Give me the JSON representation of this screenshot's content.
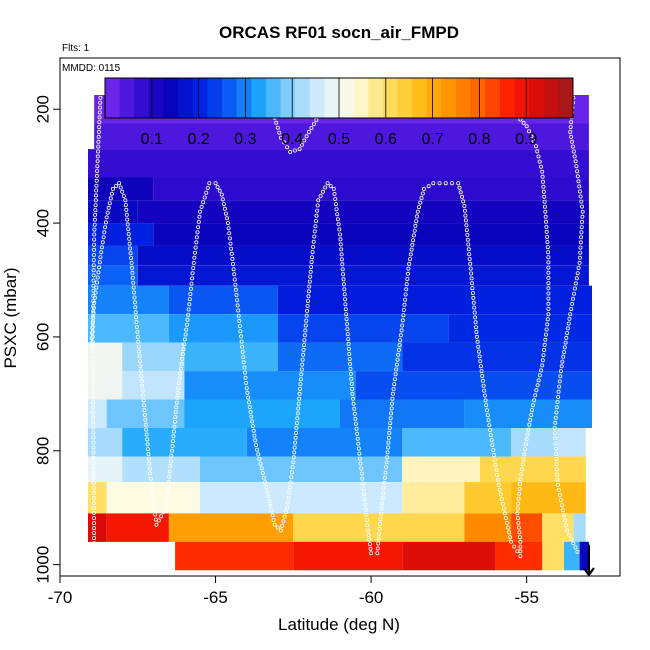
{
  "chart_data": {
    "type": "heatmap",
    "title": "ORCAS RF01 socn_air_FMPD",
    "flights_note": "Flts: 1",
    "date_note": "MMDD: 0115",
    "xlabel": "Latitude (deg N)",
    "ylabel": "PSXC (mbar)",
    "xlim": [
      -70,
      -52
    ],
    "ylim": [
      1020,
      110
    ],
    "x_ticks": [
      -70,
      -65,
      -60,
      -55
    ],
    "x_tick_labels": [
      "-70",
      "-65",
      "-60",
      "-55"
    ],
    "y_ticks": [
      200,
      400,
      600,
      800,
      1000
    ],
    "y_tick_labels": [
      "200",
      "400",
      "600",
      "800",
      "1000"
    ],
    "colorbar": {
      "range": [
        0,
        1
      ],
      "ticks": [
        0.1,
        0.2,
        0.3,
        0.4,
        0.5,
        0.6,
        0.7,
        0.8,
        0.9
      ],
      "tick_labels": [
        "0.1",
        "0.2",
        "0.3",
        "0.4",
        "0.5",
        "0.6",
        "0.7",
        "0.8",
        "0.9"
      ],
      "colors": [
        "#7b2cf0",
        "#3d10d8",
        "#0a00b8",
        "#0020e0",
        "#0a5cf5",
        "#1ea8fb",
        "#8fd2fb",
        "#e0f1fd",
        "#fffbe0",
        "#ffe066",
        "#ffc21a",
        "#ff9600",
        "#ff6400",
        "#ff1a00",
        "#d40a0a",
        "#9b1c1c"
      ]
    },
    "grid": false,
    "layers": [
      {
        "p_top": 175,
        "p_bot": 225,
        "segments": [
          [
            -68.9,
            -53.0,
            0.02
          ]
        ]
      },
      {
        "p_top": 225,
        "p_bot": 270,
        "segments": [
          [
            -68.9,
            -53.0,
            0.05
          ]
        ]
      },
      {
        "p_top": 270,
        "p_bot": 320,
        "segments": [
          [
            -69.1,
            -53.0,
            0.08
          ]
        ]
      },
      {
        "p_top": 320,
        "p_bot": 360,
        "segments": [
          [
            -69.1,
            -67.0,
            0.13
          ],
          [
            -67.0,
            -53.0,
            0.09
          ]
        ]
      },
      {
        "p_top": 360,
        "p_bot": 400,
        "segments": [
          [
            -69.1,
            -67.5,
            0.15
          ],
          [
            -67.5,
            -53.0,
            0.12
          ]
        ]
      },
      {
        "p_top": 400,
        "p_bot": 440,
        "segments": [
          [
            -69.1,
            -67.0,
            0.2
          ],
          [
            -67.0,
            -53.0,
            0.14
          ]
        ]
      },
      {
        "p_top": 440,
        "p_bot": 475,
        "segments": [
          [
            -69.1,
            -67.5,
            0.24
          ],
          [
            -67.5,
            -53.0,
            0.16
          ]
        ]
      },
      {
        "p_top": 475,
        "p_bot": 510,
        "segments": [
          [
            -69.1,
            -67.5,
            0.27
          ],
          [
            -67.5,
            -53.0,
            0.18
          ]
        ]
      },
      {
        "p_top": 510,
        "p_bot": 560,
        "segments": [
          [
            -69.1,
            -66.5,
            0.3
          ],
          [
            -66.5,
            -63.0,
            0.26
          ],
          [
            -63.0,
            -57.0,
            0.19
          ],
          [
            -57.0,
            -52.9,
            0.2
          ]
        ]
      },
      {
        "p_top": 560,
        "p_bot": 610,
        "segments": [
          [
            -69.1,
            -66.5,
            0.36
          ],
          [
            -66.5,
            -63.0,
            0.32
          ],
          [
            -63.0,
            -57.5,
            0.24
          ],
          [
            -57.5,
            -52.9,
            0.21
          ]
        ]
      },
      {
        "p_top": 610,
        "p_bot": 660,
        "segments": [
          [
            -69.1,
            -68.0,
            0.5
          ],
          [
            -68.0,
            -66.0,
            0.41
          ],
          [
            -66.0,
            -63.0,
            0.35
          ],
          [
            -63.0,
            -59.0,
            0.28
          ],
          [
            -59.0,
            -52.9,
            0.22
          ]
        ]
      },
      {
        "p_top": 660,
        "p_bot": 710,
        "segments": [
          [
            -69.1,
            -68.0,
            0.5
          ],
          [
            -68.0,
            -66.0,
            0.44
          ],
          [
            -66.0,
            -60.5,
            0.31
          ],
          [
            -60.5,
            -52.9,
            0.25
          ]
        ]
      },
      {
        "p_top": 710,
        "p_bot": 760,
        "segments": [
          [
            -69.1,
            -68.5,
            0.45
          ],
          [
            -68.5,
            -66.0,
            0.38
          ],
          [
            -66.0,
            -61.0,
            0.33
          ],
          [
            -61.0,
            -57.0,
            0.29
          ],
          [
            -57.0,
            -52.9,
            0.31
          ]
        ]
      },
      {
        "p_top": 760,
        "p_bot": 810,
        "segments": [
          [
            -69.1,
            -68.0,
            0.42
          ],
          [
            -68.0,
            -64.0,
            0.34
          ],
          [
            -64.0,
            -59.0,
            0.3
          ],
          [
            -59.0,
            -55.5,
            0.36
          ],
          [
            -55.5,
            -54.0,
            0.42
          ],
          [
            -54.0,
            -53.1,
            0.44
          ]
        ]
      },
      {
        "p_top": 810,
        "p_bot": 855,
        "segments": [
          [
            -69.1,
            -68.0,
            0.48
          ],
          [
            -68.0,
            -65.5,
            0.43
          ],
          [
            -65.5,
            -59.0,
            0.38
          ],
          [
            -59.0,
            -56.5,
            0.55
          ],
          [
            -56.5,
            -53.1,
            0.62
          ]
        ]
      },
      {
        "p_top": 855,
        "p_bot": 910,
        "segments": [
          [
            -69.1,
            -68.5,
            0.6
          ],
          [
            -68.5,
            -65.5,
            0.53
          ],
          [
            -65.5,
            -59.0,
            0.45
          ],
          [
            -59.0,
            -57.0,
            0.57
          ],
          [
            -57.0,
            -55.5,
            0.65
          ],
          [
            -55.5,
            -53.1,
            0.68
          ]
        ]
      },
      {
        "p_top": 910,
        "p_bot": 960,
        "segments": [
          [
            -69.1,
            -68.5,
            0.93
          ],
          [
            -68.5,
            -66.5,
            0.88
          ],
          [
            -66.5,
            -62.5,
            0.72
          ],
          [
            -62.5,
            -57.0,
            0.62
          ],
          [
            -57.0,
            -55.5,
            0.75
          ],
          [
            -55.5,
            -54.5,
            0.82
          ],
          [
            -54.5,
            -53.5,
            0.6
          ],
          [
            -53.5,
            -53.1,
            0.42
          ]
        ]
      },
      {
        "p_top": 960,
        "p_bot": 1010,
        "segments": [
          [
            -66.3,
            -62.5,
            0.85
          ],
          [
            -62.5,
            -59.0,
            0.88
          ],
          [
            -59.0,
            -56.0,
            0.92
          ],
          [
            -56.0,
            -54.5,
            0.85
          ],
          [
            -54.5,
            -53.8,
            0.6
          ],
          [
            -53.8,
            -53.3,
            0.35
          ],
          [
            -53.3,
            -53.0,
            0.15
          ]
        ]
      }
    ],
    "flight_track": [
      [
        -68.9,
        980
      ],
      [
        -68.95,
        600
      ],
      [
        -68.9,
        420
      ],
      [
        -68.8,
        300
      ],
      [
        -68.7,
        180
      ],
      [
        -68.5,
        180
      ],
      [
        -67.5,
        180
      ],
      [
        -66.5,
        180
      ],
      [
        -65.5,
        180
      ],
      [
        -64.5,
        180
      ],
      [
        -63.6,
        185
      ],
      [
        -63.1,
        215
      ],
      [
        -62.9,
        250
      ],
      [
        -62.6,
        275
      ],
      [
        -62.3,
        270
      ],
      [
        -62.0,
        240
      ],
      [
        -61.6,
        205
      ],
      [
        -61.1,
        183
      ],
      [
        -60.5,
        180
      ],
      [
        -59.5,
        180
      ],
      [
        -58.5,
        180
      ],
      [
        -57.5,
        180
      ],
      [
        -56.6,
        180
      ],
      [
        -56.0,
        183
      ],
      [
        -55.5,
        200
      ],
      [
        -55.0,
        230
      ],
      [
        -54.7,
        265
      ],
      [
        -54.5,
        310
      ],
      [
        -54.4,
        380
      ],
      [
        -54.3,
        460
      ],
      [
        -54.3,
        560
      ],
      [
        -54.5,
        650
      ],
      [
        -54.8,
        720
      ],
      [
        -55.0,
        780
      ],
      [
        -55.2,
        850
      ],
      [
        -55.3,
        910
      ],
      [
        -55.2,
        960
      ],
      [
        -55.2,
        985
      ],
      [
        -55.5,
        960
      ],
      [
        -55.9,
        860
      ],
      [
        -56.3,
        720
      ],
      [
        -56.6,
        600
      ],
      [
        -56.8,
        480
      ],
      [
        -57.0,
        370
      ],
      [
        -57.2,
        330
      ],
      [
        -57.6,
        330
      ],
      [
        -58.0,
        330
      ],
      [
        -58.3,
        340
      ],
      [
        -58.5,
        380
      ],
      [
        -58.8,
        480
      ],
      [
        -59.0,
        580
      ],
      [
        -59.3,
        700
      ],
      [
        -59.5,
        820
      ],
      [
        -59.7,
        920
      ],
      [
        -59.8,
        980
      ],
      [
        -60.0,
        980
      ],
      [
        -60.1,
        940
      ],
      [
        -60.3,
        840
      ],
      [
        -60.6,
        700
      ],
      [
        -60.8,
        560
      ],
      [
        -61.0,
        420
      ],
      [
        -61.2,
        340
      ],
      [
        -61.4,
        330
      ],
      [
        -61.7,
        360
      ],
      [
        -61.9,
        460
      ],
      [
        -62.1,
        580
      ],
      [
        -62.3,
        700
      ],
      [
        -62.5,
        820
      ],
      [
        -62.7,
        900
      ],
      [
        -62.9,
        940
      ],
      [
        -63.1,
        930
      ],
      [
        -63.3,
        880
      ],
      [
        -63.7,
        790
      ],
      [
        -64.0,
        690
      ],
      [
        -64.2,
        590
      ],
      [
        -64.4,
        490
      ],
      [
        -64.6,
        400
      ],
      [
        -64.8,
        350
      ],
      [
        -65.0,
        330
      ],
      [
        -65.2,
        330
      ],
      [
        -65.5,
        380
      ],
      [
        -65.7,
        470
      ],
      [
        -65.9,
        570
      ],
      [
        -66.2,
        690
      ],
      [
        -66.4,
        800
      ],
      [
        -66.6,
        900
      ],
      [
        -66.9,
        930
      ],
      [
        -67.1,
        840
      ],
      [
        -67.3,
        720
      ],
      [
        -67.5,
        600
      ],
      [
        -67.7,
        470
      ],
      [
        -67.9,
        360
      ],
      [
        -68.1,
        330
      ],
      [
        -68.3,
        340
      ],
      [
        -68.5,
        390
      ],
      [
        -68.7,
        460
      ],
      [
        -68.9,
        540
      ],
      [
        -69.0,
        620
      ]
    ],
    "return_leg": [
      [
        -53.5,
        180
      ],
      [
        -53.6,
        240
      ],
      [
        -53.4,
        300
      ],
      [
        -53.2,
        380
      ],
      [
        -53.3,
        470
      ],
      [
        -53.6,
        560
      ],
      [
        -53.9,
        660
      ],
      [
        -54.1,
        760
      ],
      [
        -54.0,
        860
      ],
      [
        -53.7,
        940
      ],
      [
        -53.3,
        985
      ]
    ],
    "markers": [
      {
        "label": "surface-arrow",
        "x": -53.0,
        "p_from": 965,
        "p_to": 1020
      }
    ]
  }
}
